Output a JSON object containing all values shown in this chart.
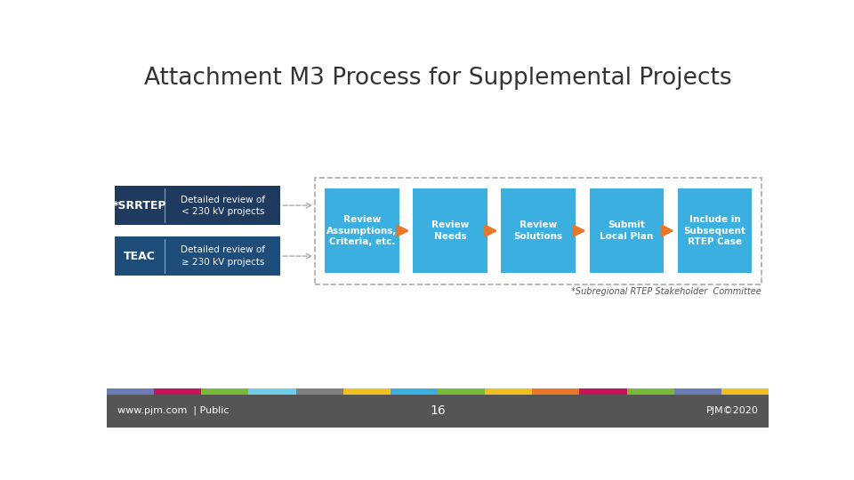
{
  "title": "Attachment M3 Process for Supplemental Projects",
  "title_fontsize": 19,
  "title_color": "#333333",
  "bg_color": "#ffffff",
  "footer_bg": "#555555",
  "footer_text_left": "www.pjm.com  | Public",
  "footer_text_center": "16",
  "footer_text_right": "PJM©2020",
  "footer_fontsize": 8,
  "left_boxes": [
    {
      "label": "*SRRTEP",
      "desc": "Detailed review of\n< 230 kV projects",
      "color": "#1e3a5f"
    },
    {
      "label": "TEAC",
      "desc": "Detailed review of\n≥ 230 kV projects",
      "color": "#1e4d7a"
    }
  ],
  "flow_boxes": [
    {
      "text": "Review\nAssumptions,\nCriteria, etc.",
      "color": "#3aafe0"
    },
    {
      "text": "Review\nNeeds",
      "color": "#3aafe0"
    },
    {
      "text": "Review\nSolutions",
      "color": "#3aafe0"
    },
    {
      "text": "Submit\nLocal Plan",
      "color": "#3aafe0"
    },
    {
      "text": "Include in\nSubsequent\nRTEP Case",
      "color": "#3aafe0"
    }
  ],
  "arrow_color": "#e8772a",
  "dashed_box_color": "#aaaaaa",
  "footnote": "*Subregional RTEP Stakeholder  Committee",
  "color_bar_colors": [
    "#6b7cb5",
    "#c8145a",
    "#7ab83a",
    "#6ecee8",
    "#808080",
    "#f0c020",
    "#3aafe0",
    "#7ab83a",
    "#f0c020",
    "#e8772a",
    "#c8145a",
    "#7ab83a",
    "#6b7cb5",
    "#f0c020"
  ]
}
